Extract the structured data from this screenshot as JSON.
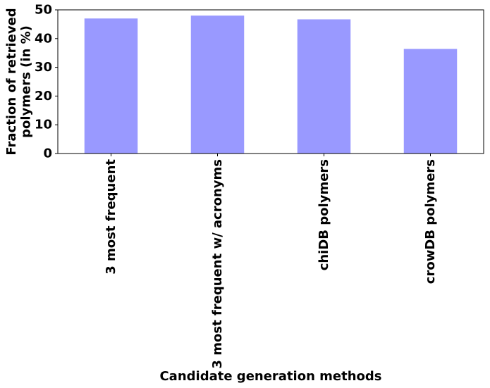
{
  "chart_data": {
    "type": "bar",
    "categories": [
      "3 most frequent",
      "3 most frequent w/ acronyms",
      "chiDB polymers",
      "crowDB polymers"
    ],
    "values": [
      47,
      48,
      46.7,
      36.4
    ],
    "title": "",
    "xlabel": "Candidate generation methods",
    "ylabel": "Fraction of retrieved\npolymers (in %)",
    "ylim": [
      0,
      50
    ],
    "yticks": [
      0,
      10,
      20,
      30,
      40,
      50
    ],
    "grid": false,
    "bar_color": "#9999ff",
    "xtick_rotation": -90
  }
}
